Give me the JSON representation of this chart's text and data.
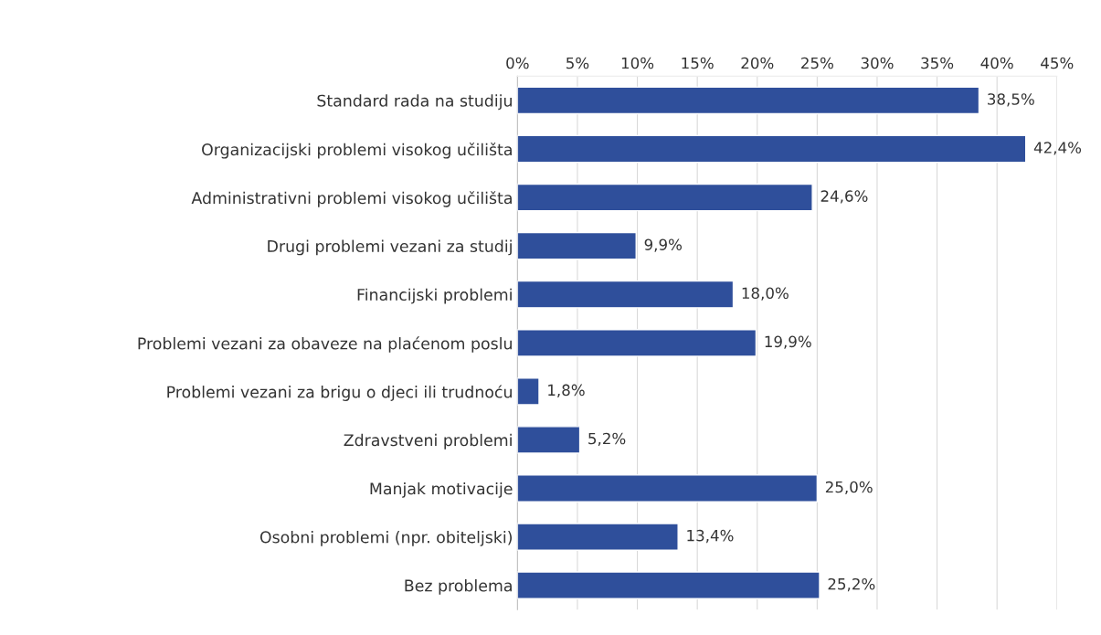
{
  "chart_data": {
    "type": "bar",
    "orientation": "horizontal",
    "categories": [
      "Standard rada na studiju",
      "Organizacijski problemi visokog učilišta",
      "Administrativni problemi visokog učilišta",
      "Drugi problemi vezani za studij",
      "Financijski problemi",
      "Problemi vezani za obaveze na plaćenom poslu",
      "Problemi vezani za brigu o djeci ili trudnoću",
      "Zdravstveni problemi",
      "Manjak motivacije",
      "Osobni problemi (npr. obiteljski)",
      "Bez problema"
    ],
    "values": [
      38.5,
      42.4,
      24.6,
      9.9,
      18.0,
      19.9,
      1.8,
      5.2,
      25.0,
      13.4,
      25.2
    ],
    "value_labels": [
      "38,5%",
      "42,4%",
      "24,6%",
      "9,9%",
      "18,0%",
      "19,9%",
      "1,8%",
      "5,2%",
      "25,0%",
      "13,4%",
      "25,2%"
    ],
    "color": "#2f4f9b",
    "xlim": [
      0,
      45
    ],
    "xticks": [
      {
        "value": 0,
        "label": "0%"
      },
      {
        "value": 5,
        "label": "5%"
      },
      {
        "value": 10,
        "label": "10%"
      },
      {
        "value": 15,
        "label": "15%"
      },
      {
        "value": 20,
        "label": "20%"
      },
      {
        "value": 25,
        "label": "25%"
      },
      {
        "value": 30,
        "label": "30%"
      },
      {
        "value": 35,
        "label": "35%"
      },
      {
        "value": 40,
        "label": "40%"
      },
      {
        "value": 45,
        "label": "45%"
      }
    ],
    "grid": "x"
  }
}
